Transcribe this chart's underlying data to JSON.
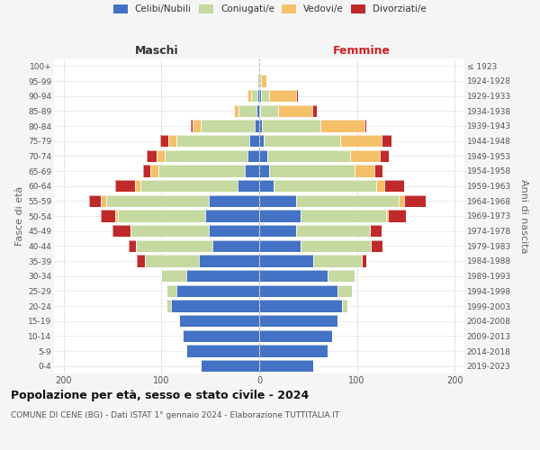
{
  "age_groups": [
    "0-4",
    "5-9",
    "10-14",
    "15-19",
    "20-24",
    "25-29",
    "30-34",
    "35-39",
    "40-44",
    "45-49",
    "50-54",
    "55-59",
    "60-64",
    "65-69",
    "70-74",
    "75-79",
    "80-84",
    "85-89",
    "90-94",
    "95-99",
    "100+"
  ],
  "birth_years": [
    "2019-2023",
    "2014-2018",
    "2009-2013",
    "2004-2008",
    "1999-2003",
    "1994-1998",
    "1989-1993",
    "1984-1988",
    "1979-1983",
    "1974-1978",
    "1969-1973",
    "1964-1968",
    "1959-1963",
    "1954-1958",
    "1949-1953",
    "1944-1948",
    "1939-1943",
    "1934-1938",
    "1929-1933",
    "1924-1928",
    "≤ 1923"
  ],
  "maschi": {
    "celibi": [
      60,
      75,
      78,
      82,
      90,
      85,
      75,
      62,
      48,
      52,
      55,
      52,
      22,
      15,
      12,
      10,
      5,
      3,
      2,
      0,
      0
    ],
    "coniugati": [
      0,
      0,
      0,
      0,
      5,
      10,
      25,
      55,
      78,
      80,
      90,
      105,
      100,
      88,
      85,
      75,
      55,
      18,
      6,
      2,
      0
    ],
    "vedovi": [
      0,
      0,
      0,
      0,
      0,
      0,
      0,
      0,
      0,
      0,
      2,
      5,
      5,
      8,
      8,
      8,
      8,
      5,
      4,
      0,
      0
    ],
    "divorziati": [
      0,
      0,
      0,
      0,
      0,
      0,
      0,
      8,
      8,
      18,
      15,
      12,
      20,
      8,
      10,
      8,
      2,
      0,
      0,
      0,
      0
    ]
  },
  "femmine": {
    "nubili": [
      55,
      70,
      75,
      80,
      85,
      80,
      70,
      55,
      42,
      38,
      42,
      38,
      15,
      10,
      8,
      5,
      3,
      1,
      2,
      0,
      0
    ],
    "coniugate": [
      0,
      0,
      0,
      0,
      5,
      15,
      28,
      50,
      72,
      75,
      88,
      105,
      105,
      88,
      85,
      78,
      60,
      18,
      8,
      2,
      0
    ],
    "vedove": [
      0,
      0,
      0,
      0,
      0,
      0,
      0,
      0,
      0,
      0,
      2,
      5,
      8,
      20,
      30,
      42,
      45,
      35,
      28,
      5,
      0
    ],
    "divorziate": [
      0,
      0,
      0,
      0,
      0,
      0,
      0,
      5,
      12,
      12,
      18,
      22,
      20,
      8,
      10,
      10,
      2,
      5,
      2,
      0,
      0
    ]
  },
  "colors": {
    "celibi": "#4472c4",
    "coniugati": "#c5d9a0",
    "vedovi": "#f5c06a",
    "divorziati": "#c0292a"
  },
  "legend_labels": [
    "Celibi/Nubili",
    "Coniugati/e",
    "Vedovi/e",
    "Divorziati/e"
  ],
  "title_bold": "Popolazione per età, sesso e stato civile - 2024",
  "subtitle": "COMUNE DI CENE (BG) - Dati ISTAT 1° gennaio 2024 - Elaborazione TUTTITALIA.IT",
  "xlabel_maschi": "Maschi",
  "xlabel_femmine": "Femmine",
  "ylabel_left": "Fasce di età",
  "ylabel_right": "Anni di nascita",
  "xlim": 210,
  "background_color": "#f5f5f5",
  "plot_bg": "#ffffff",
  "maschi_label_color": "#333333",
  "femmine_label_color": "#cc2222"
}
